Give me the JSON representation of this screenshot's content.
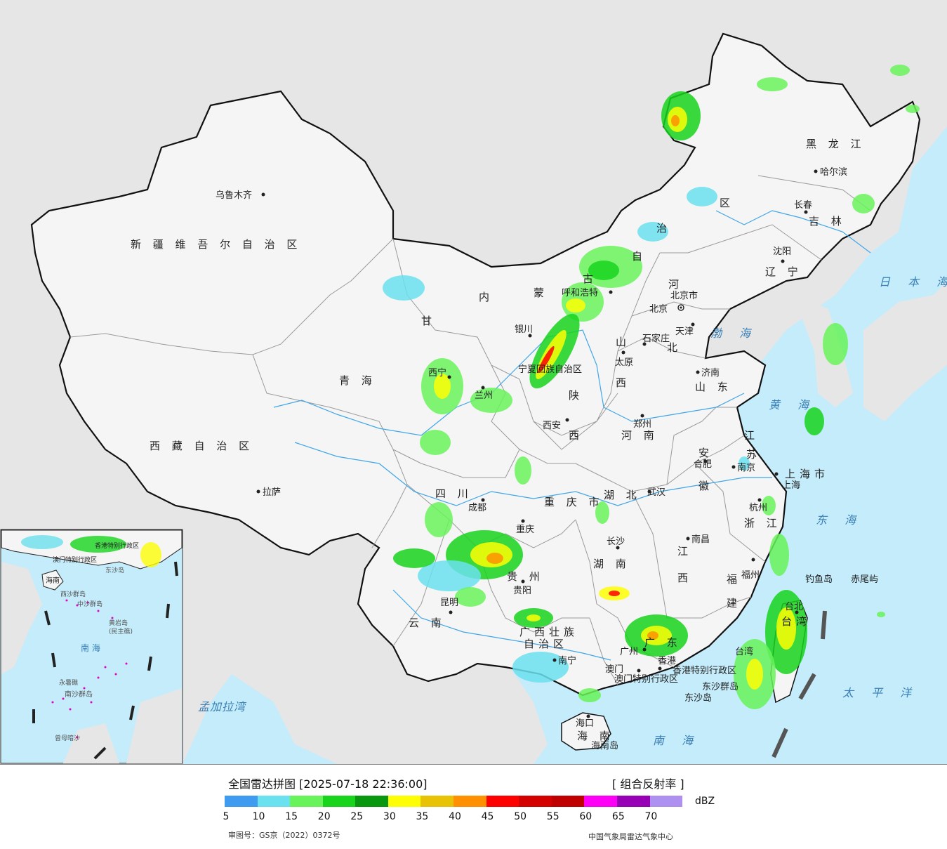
{
  "map": {
    "colors": {
      "sea": "#c4ecfb",
      "land_other": "#e6e6e6",
      "china": "#f5f5f5",
      "border": "#111111",
      "province_border": "#888888",
      "river": "#3fa6e8"
    },
    "provinces": [
      {
        "id": "xinjiang",
        "label": "新 疆 维 吾 尔 自 治 区"
      },
      {
        "id": "xizang",
        "label": "西 藏 自 治 区"
      },
      {
        "id": "qinghai",
        "label": "青   海"
      },
      {
        "id": "gansu",
        "label": "甘"
      },
      {
        "id": "neimenggu_1",
        "label": "内"
      },
      {
        "id": "neimenggu_2",
        "label": "蒙"
      },
      {
        "id": "neimenggu_3",
        "label": "古"
      },
      {
        "id": "neimenggu_4",
        "label": "自"
      },
      {
        "id": "neimenggu_5",
        "label": "治"
      },
      {
        "id": "neimenggu_6",
        "label": "区"
      },
      {
        "id": "heilongjiang",
        "label": "黑 龙 江"
      },
      {
        "id": "jilin",
        "label": "吉 林"
      },
      {
        "id": "liaoning",
        "label": "辽 宁"
      },
      {
        "id": "hebei_1",
        "label": "河"
      },
      {
        "id": "hebei_2",
        "label": "北"
      },
      {
        "id": "shanxi_1",
        "label": "山"
      },
      {
        "id": "shanxi_2",
        "label": "西"
      },
      {
        "id": "shandong",
        "label": "山 东"
      },
      {
        "id": "shaanxi_1",
        "label": "陕"
      },
      {
        "id": "shaanxi_2",
        "label": "西"
      },
      {
        "id": "henan",
        "label": "河  南"
      },
      {
        "id": "jiangsu_1",
        "label": "江"
      },
      {
        "id": "jiangsu_2",
        "label": "苏"
      },
      {
        "id": "anhui_1",
        "label": "安"
      },
      {
        "id": "anhui_2",
        "label": "徽"
      },
      {
        "id": "hubei",
        "label": "湖  北"
      },
      {
        "id": "sichuan",
        "label": "四   川"
      },
      {
        "id": "chongqing",
        "label": "重 庆 市"
      },
      {
        "id": "zhejiang",
        "label": "浙 江"
      },
      {
        "id": "shanghai",
        "label": "上海市"
      },
      {
        "id": "hunan",
        "label": "湖  南"
      },
      {
        "id": "jiangxi_1",
        "label": "江"
      },
      {
        "id": "jiangxi_2",
        "label": "西"
      },
      {
        "id": "fujian_1",
        "label": "福"
      },
      {
        "id": "fujian_2",
        "label": "建"
      },
      {
        "id": "guizhou",
        "label": "贵  州"
      },
      {
        "id": "yunnan",
        "label": "云  南"
      },
      {
        "id": "guangxi_1",
        "label": "广西壮族"
      },
      {
        "id": "guangxi_2",
        "label": "自治区"
      },
      {
        "id": "guangdong",
        "label": "广 东"
      },
      {
        "id": "hainan",
        "label": "海 南"
      },
      {
        "id": "taiwan",
        "label": "台湾"
      },
      {
        "id": "ningxia",
        "label": "宁夏回族自治区"
      },
      {
        "id": "hk_sar",
        "label": "香港特别行政区"
      },
      {
        "id": "macau_sar",
        "label": "澳门特别行政区"
      }
    ],
    "cities": [
      {
        "id": "urumqi",
        "name": "乌鲁木齐"
      },
      {
        "id": "lhasa",
        "name": "拉萨"
      },
      {
        "id": "xining",
        "name": "西宁"
      },
      {
        "id": "lanzhou",
        "name": "兰州"
      },
      {
        "id": "yinchuan",
        "name": "银川"
      },
      {
        "id": "hohhot",
        "name": "呼和浩特"
      },
      {
        "id": "harbin",
        "name": "哈尔滨"
      },
      {
        "id": "changchun",
        "name": "长春"
      },
      {
        "id": "shenyang",
        "name": "沈阳"
      },
      {
        "id": "beijing",
        "name": "北京"
      },
      {
        "id": "beijing_city",
        "name": "北京市"
      },
      {
        "id": "tianjin",
        "name": "天津"
      },
      {
        "id": "shijiazhuang",
        "name": "石家庄"
      },
      {
        "id": "taiyuan",
        "name": "太原"
      },
      {
        "id": "jinan",
        "name": "济南"
      },
      {
        "id": "xian",
        "name": "西安"
      },
      {
        "id": "zhengzhou",
        "name": "郑州"
      },
      {
        "id": "hefei",
        "name": "合肥"
      },
      {
        "id": "nanjing",
        "name": "南京"
      },
      {
        "id": "shanghai_city",
        "name": "上海"
      },
      {
        "id": "hangzhou",
        "name": "杭州"
      },
      {
        "id": "wuhan",
        "name": "武汉"
      },
      {
        "id": "chengdu",
        "name": "成都"
      },
      {
        "id": "chongqing_city",
        "name": "重庆"
      },
      {
        "id": "changsha",
        "name": "长沙"
      },
      {
        "id": "nanchang",
        "name": "南昌"
      },
      {
        "id": "fuzhou",
        "name": "福州"
      },
      {
        "id": "guiyang",
        "name": "贵阳"
      },
      {
        "id": "kunming",
        "name": "昆明"
      },
      {
        "id": "nanning",
        "name": "南宁"
      },
      {
        "id": "guangzhou",
        "name": "广州"
      },
      {
        "id": "hongkong",
        "name": "香港"
      },
      {
        "id": "macau",
        "name": "澳门"
      },
      {
        "id": "haikou",
        "name": "海口"
      },
      {
        "id": "taipei",
        "name": "台北"
      },
      {
        "id": "hainan_island",
        "name": "海南岛"
      },
      {
        "id": "taiwan_city",
        "name": "台湾"
      }
    ],
    "seas": [
      {
        "id": "japan_sea",
        "label": "日 本 海"
      },
      {
        "id": "bohai",
        "label": "渤 海"
      },
      {
        "id": "yellow_sea",
        "label": "黄 海"
      },
      {
        "id": "east_sea",
        "label": "东 海"
      },
      {
        "id": "pacific",
        "label": "太 平 洋"
      },
      {
        "id": "south_sea",
        "label": "南  海"
      },
      {
        "id": "bay_bengal",
        "label": "孟加拉湾"
      }
    ],
    "islands": [
      {
        "id": "diaoyu",
        "label": "钓鱼岛"
      },
      {
        "id": "chiwei",
        "label": "赤尾屿"
      },
      {
        "id": "dongsha_islands",
        "label": "东沙群岛"
      },
      {
        "id": "dongsha_island",
        "label": "东沙岛"
      }
    ],
    "inset": {
      "labels": [
        {
          "id": "xisha",
          "label": "西沙群岛"
        },
        {
          "id": "zhongsha",
          "label": "中沙群岛"
        },
        {
          "id": "nanhai",
          "label": "南 海"
        },
        {
          "id": "nansha",
          "label": "南沙群岛"
        },
        {
          "id": "huangyan",
          "label": "黄岩岛"
        },
        {
          "id": "minzhu",
          "label": "(民主礁)"
        },
        {
          "id": "yongshu",
          "label": "永暑礁"
        },
        {
          "id": "zengmu",
          "label": "曾母暗沙"
        },
        {
          "id": "inset_hainan",
          "label": "海南"
        },
        {
          "id": "inset_hk",
          "label": "香港特别行政区"
        },
        {
          "id": "inset_macau",
          "label": "澳门特别行政区"
        },
        {
          "id": "inset_dongsha",
          "label": "东沙岛"
        }
      ]
    }
  },
  "legend": {
    "title": "全国雷达拼图 [2025-07-18 22:36:00]",
    "product": "[ 组合反射率 ]",
    "unit": "dBZ",
    "colors": [
      "#3f9bf0",
      "#6be0ee",
      "#69f35a",
      "#18d41d",
      "#0a9710",
      "#fdfe05",
      "#e7c205",
      "#fe9001",
      "#fd0000",
      "#d40000",
      "#c00000",
      "#fe00f5",
      "#9800b5",
      "#ad90f0"
    ],
    "ticks": [
      "5",
      "10",
      "15",
      "20",
      "25",
      "30",
      "35",
      "40",
      "45",
      "50",
      "55",
      "60",
      "65",
      "70"
    ],
    "approval_number": "审图号：GS京（2022）0372号",
    "source": "中国气象局雷达气象中心"
  }
}
